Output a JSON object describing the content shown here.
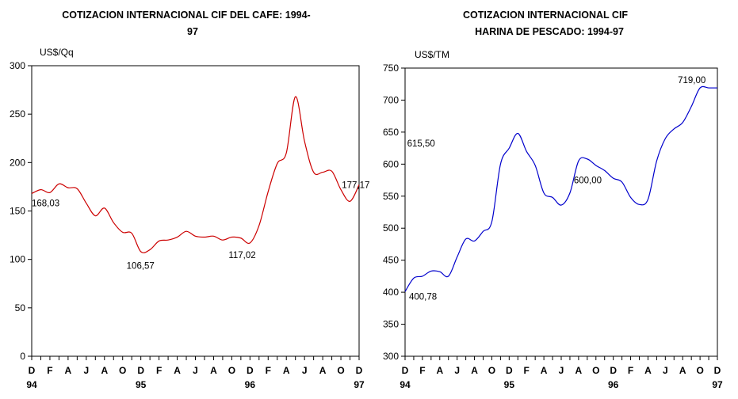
{
  "chart_data": [
    {
      "type": "line",
      "title_line1": "COTIZACION INTERNACIONAL CIF DEL CAFE: 1994-",
      "title_line2": "97",
      "ylabel": "US$/Qq",
      "ylim": [
        0,
        300
      ],
      "yticks": [
        "300",
        "250",
        "200",
        "150",
        "100",
        "50",
        "0"
      ],
      "months": [
        "D",
        "F",
        "A",
        "J",
        "A",
        "O",
        "D",
        "F",
        "A",
        "J",
        "A",
        "O",
        "D",
        "F",
        "A",
        "J",
        "A",
        "O",
        "D"
      ],
      "years": [
        "94",
        "95",
        "96",
        "97"
      ],
      "line_color": "#cc0000",
      "series": [
        {
          "name": "Café",
          "x": [
            0,
            0.5,
            1,
            1.5,
            2,
            2.5,
            3,
            3.5,
            4,
            4.5,
            5,
            5.5,
            6,
            6.5,
            7,
            7.5,
            8,
            8.5,
            9,
            9.5,
            10,
            10.5,
            11,
            11.5,
            12,
            12.5,
            13,
            13.5,
            14,
            14.5,
            15,
            15.5,
            16,
            16.5,
            17,
            17.5,
            18
          ],
          "values": [
            168,
            172,
            169,
            178,
            174,
            173,
            158,
            145,
            153,
            138,
            128,
            127,
            108,
            110,
            119,
            120,
            123,
            129,
            124,
            123,
            124,
            120,
            123,
            122,
            117,
            135,
            170,
            199,
            210,
            268,
            222,
            190,
            190,
            191,
            172,
            160,
            177
          ]
        }
      ],
      "annotations": [
        {
          "label": "168,03",
          "x": 0,
          "y": 168.03
        },
        {
          "label": "106,57",
          "x": 6,
          "y": 106.57
        },
        {
          "label": "117,02",
          "x": 12,
          "y": 117.02
        },
        {
          "label": "177,17",
          "x": 17.4,
          "y": 177.17
        }
      ]
    },
    {
      "type": "line",
      "title_line1": "COTIZACION INTERNACIONAL CIF",
      "title_line2": "HARINA DE PESCADO: 1994-97",
      "ylabel": "US$/TM",
      "ylim": [
        300,
        750
      ],
      "yticks": [
        "750",
        "700",
        "650",
        "600",
        "550",
        "500",
        "450",
        "400",
        "350",
        "300"
      ],
      "months": [
        "D",
        "F",
        "A",
        "J",
        "A",
        "O",
        "D",
        "F",
        "A",
        "J",
        "A",
        "O",
        "D",
        "F",
        "A",
        "J",
        "A",
        "O",
        "D"
      ],
      "years": [
        "94",
        "95",
        "96",
        "97"
      ],
      "line_color": "#0000cc",
      "series": [
        {
          "name": "Harina de pescado",
          "x": [
            0,
            0.5,
            1,
            1.5,
            2,
            2.5,
            3,
            3.5,
            4,
            4.5,
            5,
            5.5,
            6,
            6.5,
            7,
            7.5,
            8,
            8.5,
            9,
            9.5,
            10,
            10.5,
            11,
            11.5,
            12,
            12.5,
            13,
            13.5,
            14,
            14.5,
            15,
            15.5,
            16,
            16.5,
            17,
            17.5,
            18
          ],
          "values": [
            401,
            422,
            425,
            433,
            432,
            425,
            455,
            483,
            480,
            495,
            510,
            600,
            625,
            648,
            620,
            598,
            555,
            548,
            536,
            555,
            605,
            608,
            598,
            590,
            578,
            572,
            548,
            537,
            545,
            605,
            640,
            655,
            665,
            690,
            719,
            719,
            719
          ]
        }
      ],
      "annotations": [
        {
          "label": "400,78",
          "x": 0,
          "y": 400.78
        },
        {
          "label": "615,50",
          "x": 3.5,
          "y": 615.5
        },
        {
          "label": "600,00",
          "x": 10,
          "y": 600
        },
        {
          "label": "719,00",
          "x": 17,
          "y": 719
        }
      ]
    }
  ]
}
